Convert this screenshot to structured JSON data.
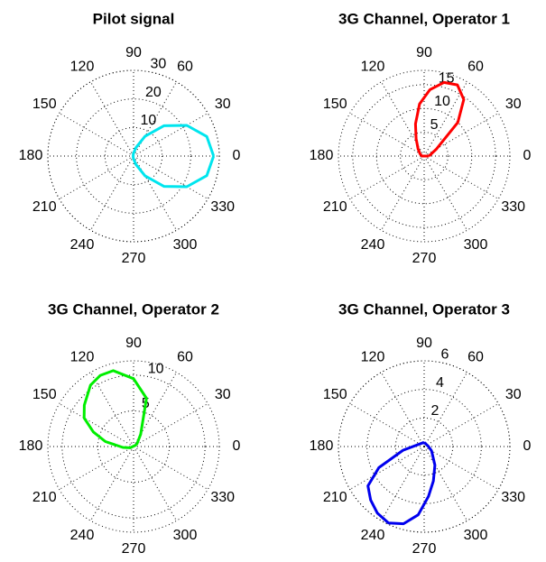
{
  "chart_data": [
    {
      "type": "polar",
      "title": "Pilot signal",
      "x": [
        0,
        15,
        30,
        45,
        60,
        75,
        90,
        105,
        255,
        270,
        285,
        300,
        315,
        330,
        345,
        0
      ],
      "series": [
        {
          "color": "#00e5ee",
          "values": [
            28,
            26.5,
            21.5,
            15,
            8,
            3,
            1,
            0.5,
            0.5,
            1,
            3,
            8,
            15,
            21.5,
            26.5,
            28
          ]
        }
      ],
      "rlim": [
        0,
        30
      ],
      "rticks": [
        10,
        20,
        30
      ],
      "thetaticks": [
        0,
        30,
        60,
        90,
        120,
        150,
        180,
        210,
        240,
        270,
        300,
        330
      ]
    },
    {
      "type": "polar",
      "title": "3G Channel, Operator 1",
      "x": [
        0,
        30,
        45,
        55,
        65,
        75,
        85,
        95,
        105,
        115,
        130,
        150,
        180,
        0
      ],
      "series": [
        {
          "color": "#ff0000",
          "values": [
            1,
            3,
            10,
            14.5,
            16.5,
            16,
            14,
            11,
            7,
            4,
            2,
            1,
            0.5,
            1
          ]
        }
      ],
      "rlim": [
        0,
        18
      ],
      "rticks": [
        5,
        10,
        15
      ],
      "thetaticks": [
        0,
        30,
        60,
        90,
        120,
        150,
        180,
        210,
        240,
        270,
        300,
        330
      ]
    },
    {
      "type": "polar",
      "title": "3G Channel, Operator 2",
      "x": [
        30,
        60,
        75,
        90,
        105,
        115,
        125,
        140,
        150,
        160,
        170,
        185,
        200,
        30
      ],
      "series": [
        {
          "color": "#00ee00",
          "values": [
            0.5,
            2,
            7,
            9.5,
            11,
            11,
            10.5,
            9,
            8,
            6,
            4,
            1.5,
            0.5,
            0.5
          ]
        }
      ],
      "rlim": [
        0,
        12
      ],
      "rticks": [
        5,
        10
      ],
      "thetaticks": [
        0,
        30,
        60,
        90,
        120,
        150,
        180,
        210,
        240,
        270,
        300,
        330
      ]
    },
    {
      "type": "polar",
      "title": "3G Channel, Operator 3",
      "x": [
        90,
        190,
        205,
        215,
        225,
        235,
        245,
        255,
        265,
        275,
        285,
        300,
        330,
        0,
        90
      ],
      "series": [
        {
          "color": "#0000ee",
          "values": [
            0.3,
            1.5,
            3.5,
            4.8,
            5.3,
            5.7,
            5.9,
            5.6,
            4.8,
            3.5,
            2.5,
            1.5,
            0.6,
            0.3,
            0.3
          ]
        }
      ],
      "rlim": [
        0,
        6
      ],
      "rticks": [
        2,
        4,
        6
      ],
      "thetaticks": [
        0,
        30,
        60,
        90,
        120,
        150,
        180,
        210,
        240,
        270,
        300,
        330
      ]
    }
  ]
}
